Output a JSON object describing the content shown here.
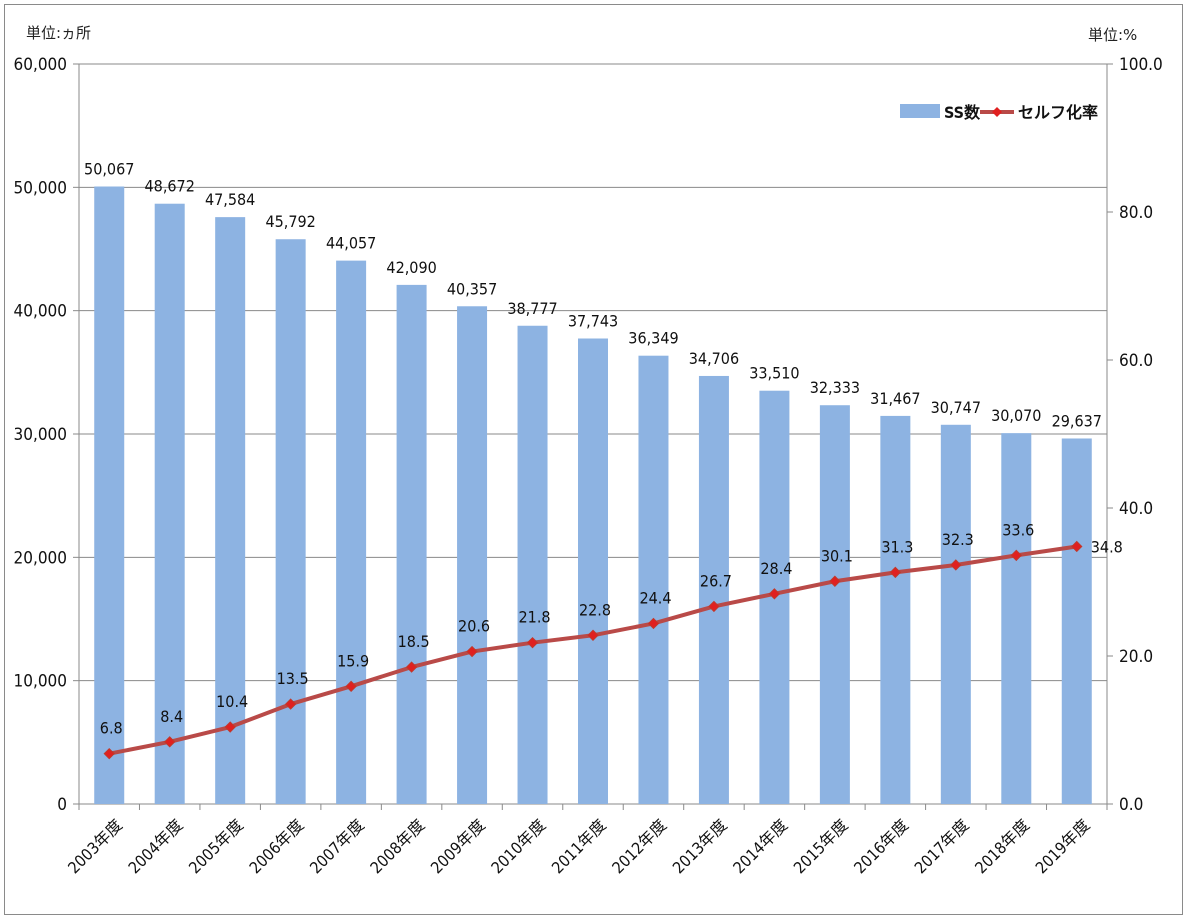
{
  "chart_data": {
    "type": "bar+line",
    "left_unit": "単位:ヵ所",
    "right_unit": "単位:%",
    "categories": [
      "2003年度",
      "2004年度",
      "2005年度",
      "2006年度",
      "2007年度",
      "2008年度",
      "2009年度",
      "2010年度",
      "2011年度",
      "2012年度",
      "2013年度",
      "2014年度",
      "2015年度",
      "2016年度",
      "2017年度",
      "2018年度",
      "2019年度"
    ],
    "series": [
      {
        "name": "SS数",
        "type": "bar",
        "axis": "left",
        "color": "#8db3e2",
        "values": [
          50067,
          48672,
          47584,
          45792,
          44057,
          42090,
          40357,
          38777,
          37743,
          36349,
          34706,
          33510,
          32333,
          31467,
          30747,
          30070,
          29637
        ],
        "labels": [
          "50,067",
          "48,672",
          "47,584",
          "45,792",
          "44,057",
          "42,090",
          "40,357",
          "38,777",
          "37,743",
          "36,349",
          "34,706",
          "33,510",
          "32,333",
          "31,467",
          "30,747",
          "30,070",
          "29,637"
        ]
      },
      {
        "name": "セルフ化率",
        "type": "line",
        "axis": "right",
        "color": "#c0392b",
        "values": [
          6.8,
          8.4,
          10.4,
          13.5,
          15.9,
          18.5,
          20.6,
          21.8,
          22.8,
          24.4,
          26.7,
          28.4,
          30.1,
          31.3,
          32.3,
          33.6,
          34.8
        ],
        "labels": [
          "6.8",
          "8.4",
          "10.4",
          "13.5",
          "15.9",
          "18.5",
          "20.6",
          "21.8",
          "22.8",
          "24.4",
          "26.7",
          "28.4",
          "30.1",
          "31.3",
          "32.3",
          "33.6",
          "34.8"
        ]
      }
    ],
    "y_left": {
      "min": 0,
      "max": 60000,
      "ticks": [
        "0",
        "10,000",
        "20,000",
        "30,000",
        "40,000",
        "50,000",
        "60,000"
      ]
    },
    "y_right": {
      "min": 0,
      "max": 100,
      "ticks": [
        "0.0",
        "20.0",
        "40.0",
        "60.0",
        "80.0",
        "100.0"
      ]
    },
    "grid": true,
    "legend_position": "top-right"
  }
}
